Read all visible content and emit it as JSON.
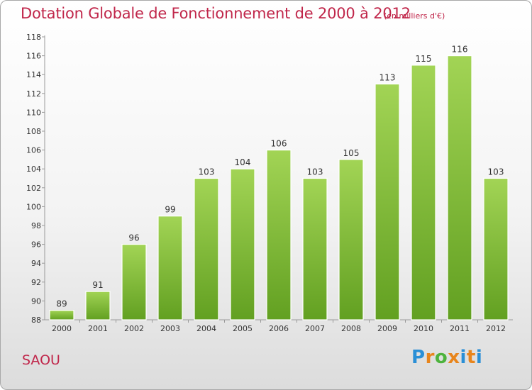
{
  "title": "Dotation Globale de Fonctionnement de 2000 à 2012",
  "subtitle": "(en milliers d'€)",
  "commune": "SAOU",
  "logo": {
    "letters": [
      "P",
      "r",
      "o",
      "x",
      "i",
      "t",
      "i"
    ],
    "colors": [
      "#2a8fd6",
      "#e8851c",
      "#4db33d",
      "#e8851c",
      "#2a8fd6",
      "#e8851c",
      "#2a8fd6"
    ]
  },
  "colors": {
    "bar_top": "#a2d455",
    "bar_bottom": "#62a021",
    "text_accent": "#c0264a"
  },
  "chart_data": {
    "type": "bar",
    "categories": [
      "2000",
      "2001",
      "2002",
      "2003",
      "2004",
      "2005",
      "2006",
      "2007",
      "2008",
      "2009",
      "2010",
      "2011",
      "2012"
    ],
    "values": [
      89,
      91,
      96,
      99,
      103,
      104,
      106,
      103,
      105,
      113,
      115,
      116,
      103
    ],
    "title": "Dotation Globale de Fonctionnement de 2000 à 2012",
    "xlabel": "",
    "ylabel": "",
    "ylim": [
      88,
      118
    ],
    "yticks": [
      88,
      90,
      92,
      94,
      96,
      98,
      100,
      102,
      104,
      106,
      108,
      110,
      112,
      114,
      116,
      118
    ],
    "grid": false,
    "legend": "none"
  }
}
